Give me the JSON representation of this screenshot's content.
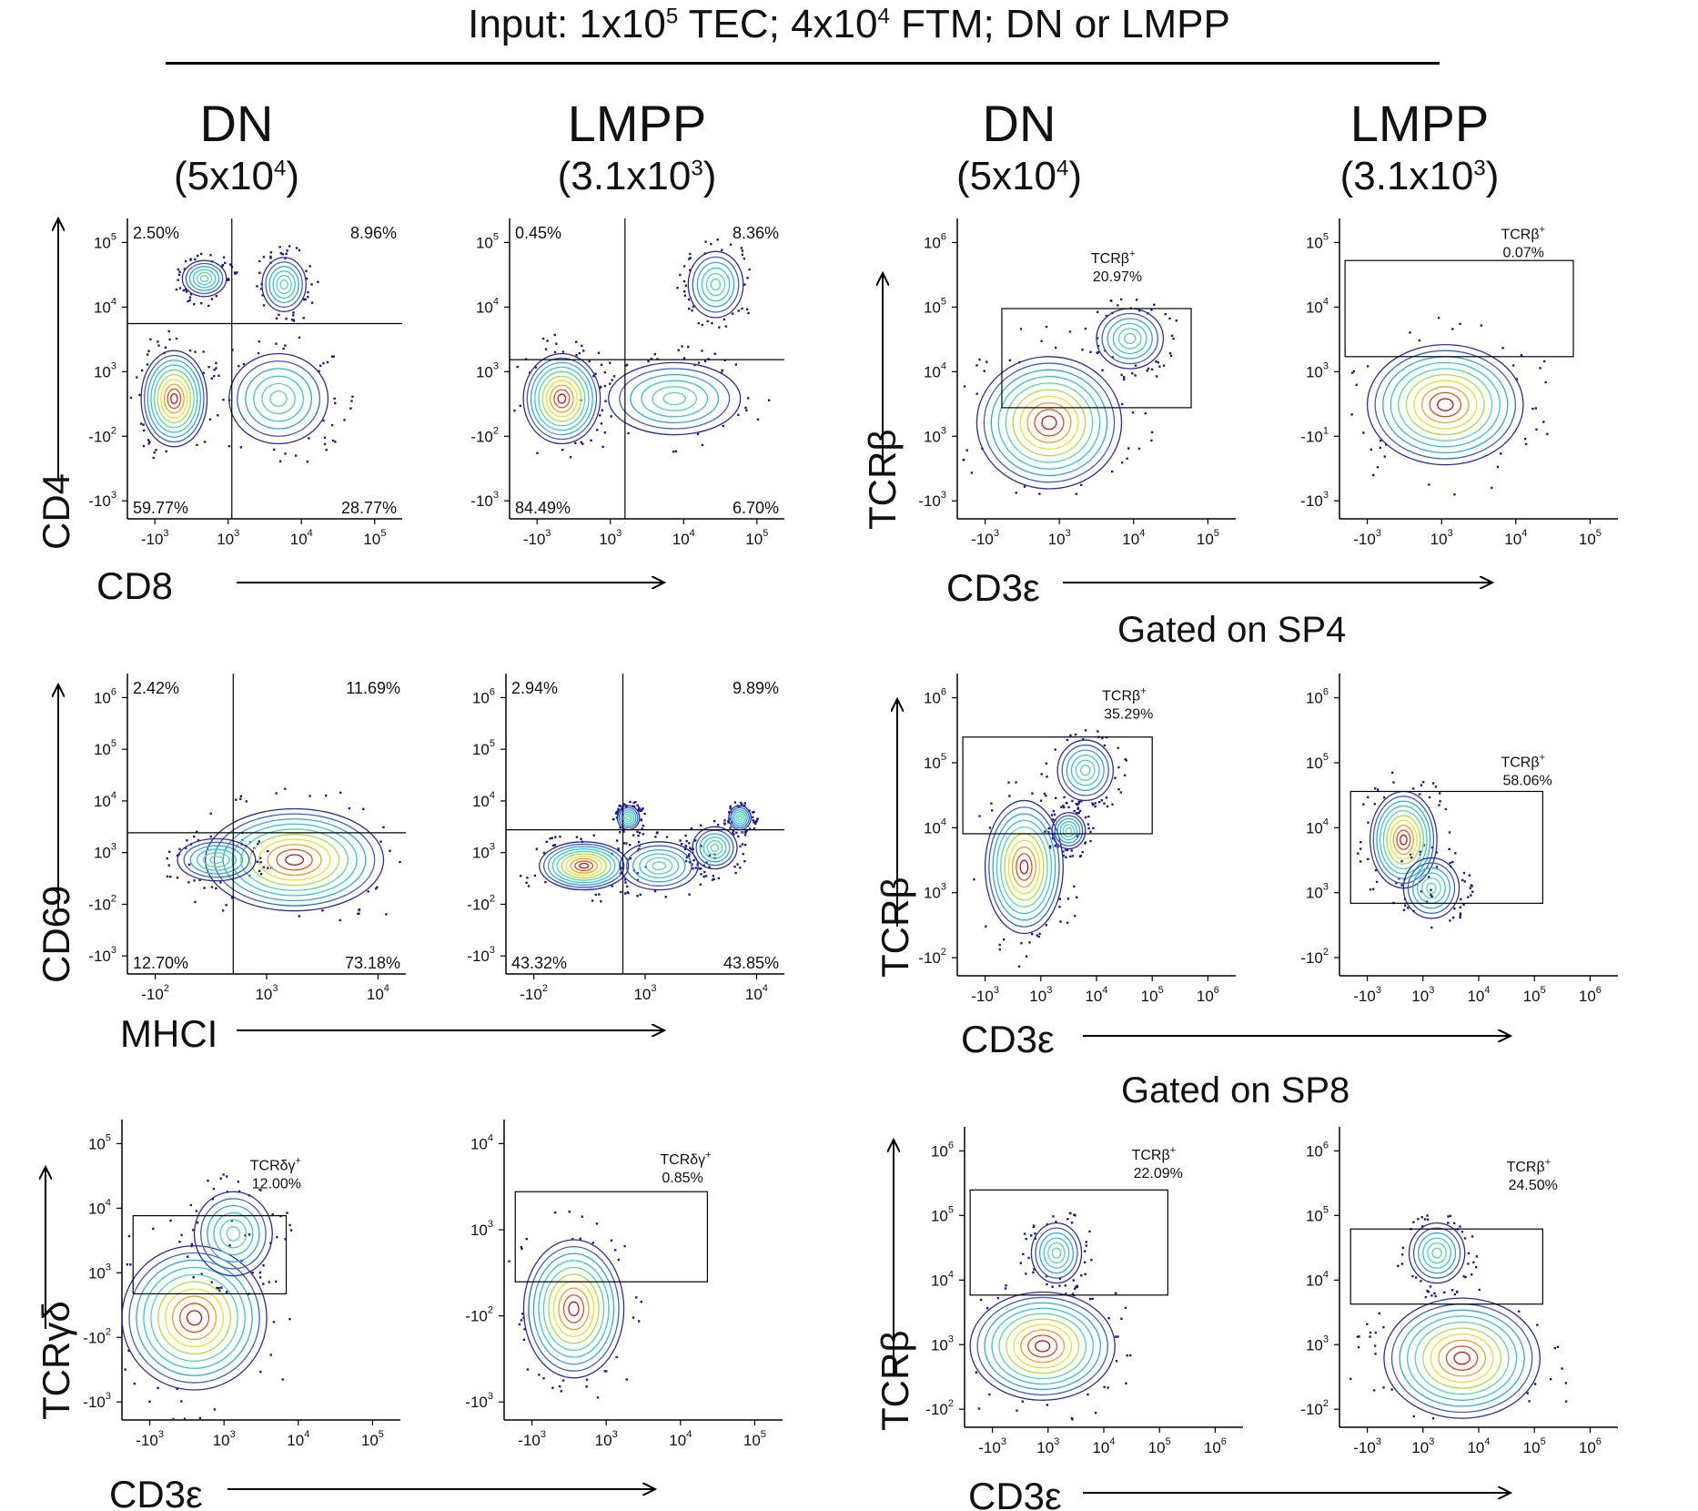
{
  "figure_title": {
    "prefix": "Input: 1x10",
    "exp1": "5",
    "mid": " TEC; 4x10",
    "exp2": "4",
    "suffix": " FTM; DN or LMPP"
  },
  "column_headers": [
    {
      "name": "DN",
      "count_base": "(5x10",
      "count_exp": "4",
      "count_close": ")"
    },
    {
      "name": "LMPP",
      "count_base": "(3.1x10",
      "count_exp": "3",
      "count_close": ")"
    },
    {
      "name": "DN",
      "count_base": "(5x10",
      "count_exp": "4",
      "count_close": ")"
    },
    {
      "name": "LMPP",
      "count_base": "(3.1x10",
      "count_exp": "3",
      "count_close": ")"
    }
  ],
  "gate_labels": [
    "Gated on SP4",
    "Gated on SP8"
  ],
  "axis_labels": {
    "cd4": "CD4",
    "cd8": "CD8",
    "cd69": "CD69",
    "mhci": "MHCI",
    "tcrgd": "TCRγδ",
    "cd3e": "CD3ε",
    "tcrb": "TCRβ"
  },
  "colors": {
    "contour_outer": "#2a2aa8",
    "contour_mid": "#2fc7d8",
    "contour_inner": "#f0e020",
    "contour_core": "#e02010",
    "points": "#1a1a90"
  },
  "chart_data": [
    {
      "type": "scatter",
      "title": "",
      "xlabel": "CD8",
      "ylabel": "CD4",
      "population": "DN",
      "xticks": [
        "-10^3",
        "10^3",
        "10^4",
        "10^5"
      ],
      "yticks": [
        "-10^3",
        "-10^2",
        "10^3",
        "10^4",
        "10^5"
      ],
      "quadrants": {
        "upper_left": "2.50%",
        "upper_right": "8.96%",
        "lower_left": "59.77%",
        "lower_right": "28.77%"
      }
    },
    {
      "type": "scatter",
      "title": "",
      "xlabel": "CD8",
      "ylabel": "CD4",
      "population": "LMPP",
      "xticks": [
        "-10^3",
        "10^3",
        "10^4",
        "10^5"
      ],
      "yticks": [
        "-10^3",
        "-10^2",
        "10^3",
        "10^4",
        "10^5"
      ],
      "quadrants": {
        "upper_left": "0.45%",
        "upper_right": "8.36%",
        "lower_left": "84.49%",
        "lower_right": "6.70%"
      }
    },
    {
      "type": "scatter",
      "title": "",
      "xlabel": "CD3ε",
      "ylabel": "TCRβ",
      "population": "DN",
      "xticks": [
        "-10^3",
        "10^3",
        "10^4",
        "10^5"
      ],
      "yticks": [
        "-10^3",
        "10^3",
        "10^4",
        "10^5",
        "10^6"
      ],
      "gate": {
        "name": "TCRβ+",
        "value": "20.97%"
      }
    },
    {
      "type": "scatter",
      "title": "",
      "xlabel": "CD3ε",
      "ylabel": "TCRβ",
      "population": "LMPP",
      "xticks": [
        "-10^3",
        "10^3",
        "10^4",
        "10^5"
      ],
      "yticks": [
        "-10^3",
        "-10^1",
        "10^3",
        "10^4",
        "10^5"
      ],
      "gate": {
        "name": "TCRβ+",
        "value": "0.07%"
      }
    },
    {
      "type": "scatter",
      "title": "",
      "xlabel": "MHCI",
      "ylabel": "CD69",
      "population": "DN",
      "xticks": [
        "-10^2",
        "10^3",
        "10^4"
      ],
      "yticks": [
        "-10^3",
        "-10^2",
        "10^3",
        "10^4",
        "10^5",
        "10^6"
      ],
      "quadrants": {
        "upper_left": "2.42%",
        "upper_right": "11.69%",
        "lower_left": "12.70%",
        "lower_right": "73.18%"
      }
    },
    {
      "type": "scatter",
      "title": "",
      "xlabel": "MHCI",
      "ylabel": "CD69",
      "population": "LMPP",
      "xticks": [
        "-10^2",
        "10^3",
        "10^4"
      ],
      "yticks": [
        "-10^3",
        "-10^2",
        "10^3",
        "10^4",
        "10^5",
        "10^6"
      ],
      "quadrants": {
        "upper_left": "2.94%",
        "upper_right": "9.89%",
        "lower_left": "43.32%",
        "lower_right": "43.85%"
      }
    },
    {
      "type": "scatter",
      "title": "",
      "xlabel": "CD3ε",
      "ylabel": "TCRβ",
      "population": "DN",
      "gated_on": "SP4",
      "xticks": [
        "-10^3",
        "10^3",
        "10^4",
        "10^5",
        "10^6"
      ],
      "yticks": [
        "-10^2",
        "10^3",
        "10^4",
        "10^5",
        "10^6"
      ],
      "gate": {
        "name": "TCRβ+",
        "value": "35.29%"
      }
    },
    {
      "type": "scatter",
      "title": "",
      "xlabel": "CD3ε",
      "ylabel": "TCRβ",
      "population": "LMPP",
      "gated_on": "SP4",
      "xticks": [
        "-10^3",
        "10^3",
        "10^4",
        "10^5",
        "10^6"
      ],
      "yticks": [
        "-10^2",
        "10^3",
        "10^4",
        "10^5",
        "10^6"
      ],
      "gate": {
        "name": "TCRβ+",
        "value": "58.06%"
      }
    },
    {
      "type": "scatter",
      "title": "",
      "xlabel": "CD3ε",
      "ylabel": "TCRγδ",
      "population": "DN",
      "xticks": [
        "-10^3",
        "10^3",
        "10^4",
        "10^5"
      ],
      "yticks": [
        "-10^3",
        "-10^2",
        "10^3",
        "10^4",
        "10^5"
      ],
      "gate": {
        "name": "TCRδγ+",
        "value": "12.00%"
      }
    },
    {
      "type": "scatter",
      "title": "",
      "xlabel": "CD3ε",
      "ylabel": "TCRγδ",
      "population": "LMPP",
      "xticks": [
        "-10^3",
        "10^3",
        "10^4",
        "10^5"
      ],
      "yticks": [
        "-10^3",
        "-10^2",
        "10^3",
        "10^4"
      ],
      "gate": {
        "name": "TCRδγ+",
        "value": "0.85%"
      }
    },
    {
      "type": "scatter",
      "title": "",
      "xlabel": "CD3ε",
      "ylabel": "TCRβ",
      "population": "DN",
      "gated_on": "SP8",
      "xticks": [
        "-10^3",
        "10^3",
        "10^4",
        "10^5",
        "10^6"
      ],
      "yticks": [
        "-10^2",
        "10^3",
        "10^4",
        "10^5",
        "10^6"
      ],
      "gate": {
        "name": "TCRβ+",
        "value": "22.09%"
      }
    },
    {
      "type": "scatter",
      "title": "",
      "xlabel": "CD3ε",
      "ylabel": "TCRβ",
      "population": "LMPP",
      "gated_on": "SP8",
      "xticks": [
        "-10^3",
        "10^3",
        "10^4",
        "10^5",
        "10^6"
      ],
      "yticks": [
        "-10^2",
        "10^3",
        "10^4",
        "10^5",
        "10^6"
      ],
      "gate": {
        "name": "TCRβ+",
        "value": "24.50%"
      }
    }
  ]
}
